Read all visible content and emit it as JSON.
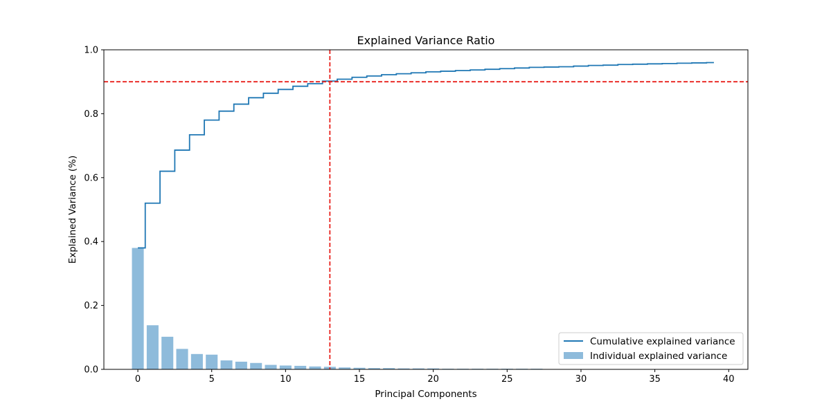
{
  "chart_data": {
    "type": "bar",
    "title": "Explained Variance Ratio",
    "xlabel": "Principal Components",
    "ylabel": "Explained Variance (%)",
    "xlim": [
      -2.3,
      41.3
    ],
    "ylim": [
      0,
      1.0
    ],
    "x_ticks": [
      0,
      5,
      10,
      15,
      20,
      25,
      30,
      35,
      40
    ],
    "y_ticks": [
      0.0,
      0.2,
      0.4,
      0.6,
      0.8,
      1.0
    ],
    "x_tick_labels": [
      "0",
      "5",
      "10",
      "15",
      "20",
      "25",
      "30",
      "35",
      "40"
    ],
    "y_tick_labels": [
      "0.0",
      "0.2",
      "0.4",
      "0.6",
      "0.8",
      "1.0"
    ],
    "grid": false,
    "legend_position": "lower-right",
    "components": [
      0,
      1,
      2,
      3,
      4,
      5,
      6,
      7,
      8,
      9,
      10,
      11,
      12,
      13,
      14,
      15,
      16,
      17,
      18,
      19,
      20,
      21,
      22,
      23,
      24,
      25,
      26,
      27,
      28,
      29,
      30,
      31,
      32,
      33,
      34,
      35,
      36,
      37,
      38,
      39
    ],
    "series": [
      {
        "name": "Individual explained variance",
        "type": "bar",
        "color": "#8ebbdb",
        "values": [
          0.38,
          0.138,
          0.102,
          0.064,
          0.048,
          0.046,
          0.028,
          0.024,
          0.02,
          0.014,
          0.012,
          0.011,
          0.009,
          0.008,
          0.006,
          0.005,
          0.004,
          0.004,
          0.003,
          0.003,
          0.003,
          0.002,
          0.002,
          0.002,
          0.002,
          0.002,
          0.002,
          0.002,
          0.001,
          0.001,
          0.001,
          0.001,
          0.001,
          0.001,
          0.001,
          0.001,
          0.001,
          0.001,
          0.001,
          0.001
        ]
      },
      {
        "name": "Cumulative explained variance",
        "type": "step",
        "color": "#1f77b4",
        "values": [
          0.38,
          0.52,
          0.62,
          0.686,
          0.734,
          0.78,
          0.808,
          0.83,
          0.85,
          0.864,
          0.876,
          0.886,
          0.894,
          0.902,
          0.908,
          0.914,
          0.918,
          0.922,
          0.925,
          0.928,
          0.931,
          0.933,
          0.935,
          0.937,
          0.939,
          0.941,
          0.943,
          0.945,
          0.946,
          0.947,
          0.949,
          0.951,
          0.952,
          0.954,
          0.955,
          0.956,
          0.957,
          0.958,
          0.959,
          0.96
        ]
      }
    ],
    "reference_lines": [
      {
        "orientation": "horizontal",
        "value": 0.9,
        "color": "#e8201b",
        "style": "dashed"
      },
      {
        "orientation": "vertical",
        "value": 13,
        "color": "#e8201b",
        "style": "dashed"
      }
    ]
  }
}
